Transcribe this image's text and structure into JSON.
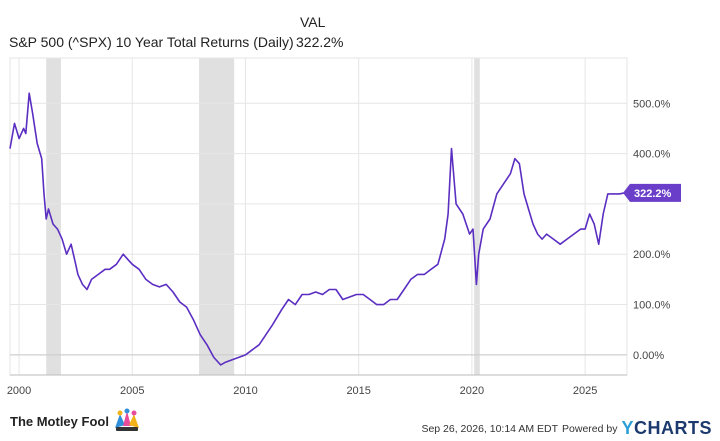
{
  "legend": {
    "header": "VAL",
    "series_name": "S&P 500 (^SPX) 10 Year Total Returns (Daily)",
    "series_value": "322.2%"
  },
  "footer": {
    "brand_left": "The Motley Fool",
    "timestamp": "Sep 26, 2026, 10:14 AM EDT",
    "powered_by": "Powered by",
    "brand_right": "YCHARTS"
  },
  "colors": {
    "line": "#5b2ec2",
    "recession": "#e0e0e0",
    "grid": "#e6e6e6",
    "badge": "#6a3ec8"
  },
  "chart_data": {
    "type": "line",
    "title": "",
    "xlabel": "",
    "ylabel": "",
    "x_ticks": [
      {
        "label": "2000",
        "value": 2000
      },
      {
        "label": "2005",
        "value": 2005
      },
      {
        "label": "2010",
        "value": 2010
      },
      {
        "label": "2015",
        "value": 2015
      },
      {
        "label": "2020",
        "value": 2020
      },
      {
        "label": "2025",
        "value": 2025
      }
    ],
    "y_ticks": [
      {
        "label": "0.00%",
        "value": 0
      },
      {
        "label": "100.0%",
        "value": 100
      },
      {
        "label": "200.0%",
        "value": 200
      },
      {
        "label": "400.0%",
        "value": 400
      },
      {
        "label": "500.0%",
        "value": 500
      }
    ],
    "xlim": [
      1999.6,
      2026.85
    ],
    "ylim": [
      -40,
      590
    ],
    "grid": true,
    "recessions": [
      [
        2001.2,
        2001.85
      ],
      [
        2007.95,
        2009.5
      ],
      [
        2020.1,
        2020.35
      ]
    ],
    "last_value_label": "322.2%",
    "series": [
      {
        "x": [
          1999.6,
          1999.8,
          2000.0,
          2000.2,
          2000.3,
          2000.45,
          2000.6,
          2000.8,
          2001.0,
          2001.1,
          2001.2,
          2001.3,
          2001.5,
          2001.7,
          2001.9,
          2002.1,
          2002.3,
          2002.5,
          2002.6,
          2002.8,
          2003.0,
          2003.2,
          2003.5,
          2003.8,
          2004.0,
          2004.3,
          2004.6,
          2004.8,
          2005.0,
          2005.3,
          2005.6,
          2005.9,
          2006.2,
          2006.5,
          2006.8,
          2007.1,
          2007.4,
          2007.7,
          2008.0,
          2008.3,
          2008.6,
          2008.9,
          2009.1,
          2009.4,
          2009.7,
          2010.0,
          2010.3,
          2010.6,
          2010.9,
          2011.2,
          2011.6,
          2011.9,
          2012.2,
          2012.5,
          2012.8,
          2013.1,
          2013.4,
          2013.7,
          2014.0,
          2014.3,
          2014.6,
          2014.9,
          2015.2,
          2015.5,
          2015.8,
          2016.1,
          2016.4,
          2016.7,
          2017.0,
          2017.3,
          2017.6,
          2017.9,
          2018.2,
          2018.5,
          2018.8,
          2018.95,
          2019.1,
          2019.3,
          2019.6,
          2019.9,
          2020.05,
          2020.2,
          2020.3,
          2020.5,
          2020.8,
          2021.1,
          2021.4,
          2021.7,
          2021.9,
          2022.1,
          2022.3,
          2022.5,
          2022.7,
          2022.9,
          2023.1,
          2023.3,
          2023.6,
          2023.9,
          2024.2,
          2024.5,
          2024.8,
          2025.0,
          2025.2,
          2025.4,
          2025.6,
          2025.8,
          2026.0,
          2026.3,
          2026.5,
          2026.75
        ],
        "y": [
          410,
          460,
          430,
          450,
          440,
          520,
          480,
          420,
          390,
          320,
          270,
          290,
          260,
          250,
          230,
          200,
          220,
          180,
          160,
          140,
          130,
          150,
          160,
          170,
          170,
          180,
          200,
          190,
          180,
          170,
          150,
          140,
          135,
          140,
          125,
          105,
          95,
          70,
          40,
          20,
          -5,
          -20,
          -15,
          -10,
          -5,
          0,
          10,
          20,
          40,
          60,
          90,
          110,
          100,
          120,
          120,
          125,
          120,
          130,
          130,
          110,
          115,
          120,
          120,
          110,
          100,
          100,
          110,
          110,
          130,
          150,
          160,
          160,
          170,
          180,
          230,
          280,
          410,
          300,
          280,
          240,
          250,
          140,
          200,
          250,
          270,
          320,
          340,
          360,
          390,
          380,
          320,
          290,
          260,
          240,
          230,
          240,
          230,
          220,
          230,
          240,
          250,
          250,
          280,
          260,
          220,
          280,
          320,
          320,
          320,
          322
        ]
      }
    ]
  }
}
